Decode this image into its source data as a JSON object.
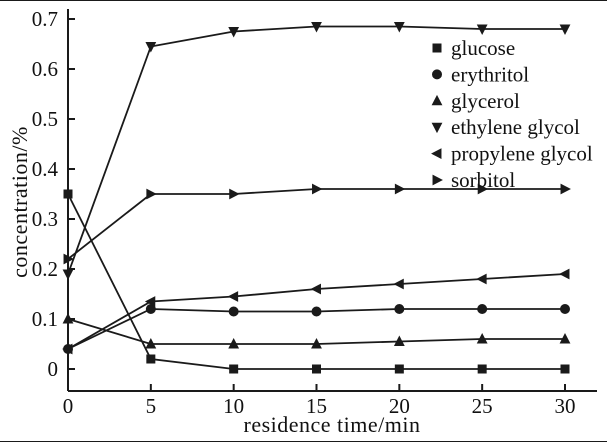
{
  "figure": {
    "background": "#ffffff",
    "ink_color": "#1a1a1a"
  },
  "chart_data": {
    "type": "line",
    "x": [
      0,
      5,
      10,
      15,
      20,
      25,
      30
    ],
    "series": [
      {
        "name": "glucose",
        "marker": "square",
        "values": [
          0.35,
          0.02,
          0.0,
          0.0,
          0.0,
          0.0,
          0.0
        ]
      },
      {
        "name": "erythritol",
        "marker": "circle",
        "values": [
          0.04,
          0.12,
          0.115,
          0.115,
          0.12,
          0.12,
          0.12
        ]
      },
      {
        "name": "glycerol",
        "marker": "triangle-up",
        "values": [
          0.1,
          0.05,
          0.05,
          0.05,
          0.055,
          0.06,
          0.06
        ]
      },
      {
        "name": "ethylene glycol",
        "marker": "triangle-down",
        "values": [
          0.19,
          0.645,
          0.675,
          0.685,
          0.685,
          0.68,
          0.68
        ]
      },
      {
        "name": "propylene glycol",
        "marker": "triangle-left",
        "values": [
          0.04,
          0.135,
          0.145,
          0.16,
          0.17,
          0.18,
          0.19
        ]
      },
      {
        "name": "sorbitol",
        "marker": "triangle-right",
        "values": [
          0.22,
          0.35,
          0.35,
          0.36,
          0.36,
          0.36,
          0.36
        ]
      }
    ],
    "title": "",
    "xlabel": "residence time/min",
    "ylabel": "concentration/%",
    "xlim": [
      0,
      30
    ],
    "ylim": [
      0,
      0.7
    ],
    "xticks": [
      0,
      5,
      10,
      15,
      20,
      25,
      30
    ],
    "xtick_labels": [
      "0",
      "5",
      "10",
      "15",
      "20",
      "25",
      "30"
    ],
    "yticks": [
      0,
      0.1,
      0.2,
      0.3,
      0.4,
      0.5,
      0.6,
      0.7
    ],
    "ytick_labels": [
      "0",
      "0.1",
      "0.2",
      "0.3",
      "0.4",
      "0.5",
      "0.6",
      "0.7"
    ],
    "grid": false,
    "legend_position": "upper-right-inside"
  }
}
